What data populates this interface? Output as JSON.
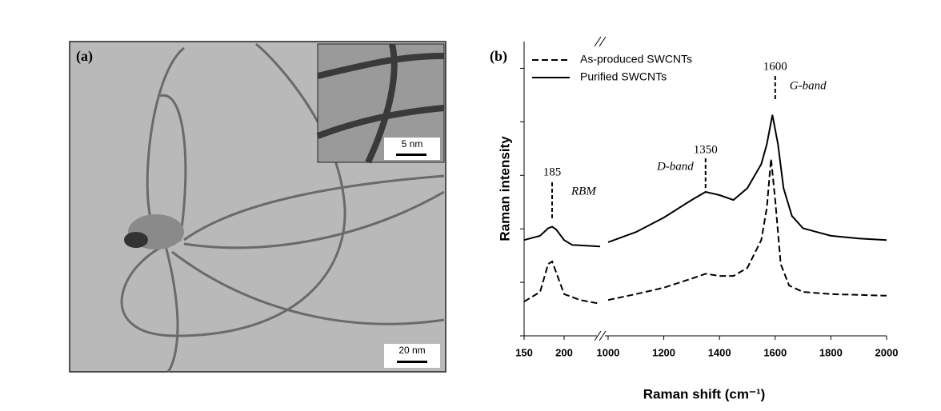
{
  "image": {
    "panel_label": "(a)",
    "scale_bar": "20 nm",
    "inset_scale_bar": "5 nm"
  },
  "chart_data": {
    "type": "line",
    "panel_label": "(b)",
    "x_label": "Raman shift (cm⁻¹)",
    "y_label": "Raman intensity",
    "xlim": [
      150,
      2000
    ],
    "xbreak": [
      245,
      980
    ],
    "xticks": [
      150,
      200,
      1000,
      1200,
      1400,
      1600,
      1800,
      2000
    ],
    "ylim": [
      0,
      5.5
    ],
    "yticks": [
      0,
      1,
      2,
      3,
      4,
      5
    ],
    "series": [
      {
        "name": "As-produced SWCNTs",
        "color": "#000000",
        "style": "dashed",
        "x": [
          150,
          170,
          180,
          185,
          190,
          200,
          220,
          245,
          1000,
          1100,
          1200,
          1300,
          1350,
          1400,
          1450,
          1500,
          1550,
          1570,
          1585,
          1600,
          1620,
          1650,
          1700,
          1800,
          2000
        ],
        "values": [
          0.64,
          0.82,
          1.34,
          1.39,
          1.19,
          0.78,
          0.67,
          0.6,
          0.67,
          0.78,
          0.9,
          1.07,
          1.16,
          1.12,
          1.12,
          1.27,
          1.79,
          2.39,
          3.31,
          2.54,
          1.34,
          0.94,
          0.82,
          0.78,
          0.75
        ]
      },
      {
        "name": "Purified SWCNTs",
        "color": "#000000",
        "style": "solid",
        "x": [
          150,
          170,
          180,
          185,
          190,
          200,
          210,
          245,
          1000,
          1100,
          1200,
          1300,
          1350,
          1400,
          1450,
          1500,
          1550,
          1570,
          1590,
          1610,
          1630,
          1660,
          1700,
          1800,
          1900,
          2000
        ],
        "values": [
          1.79,
          1.87,
          2.01,
          2.04,
          1.99,
          1.79,
          1.7,
          1.67,
          1.75,
          1.94,
          2.21,
          2.54,
          2.69,
          2.63,
          2.54,
          2.76,
          3.21,
          3.58,
          4.13,
          3.58,
          2.76,
          2.24,
          2.01,
          1.87,
          1.82,
          1.79
        ]
      }
    ],
    "annotations": [
      {
        "x": 185,
        "name": "RBM"
      },
      {
        "x": 1350,
        "name": "D-band"
      },
      {
        "x": 1600,
        "name": "G-band"
      }
    ]
  }
}
